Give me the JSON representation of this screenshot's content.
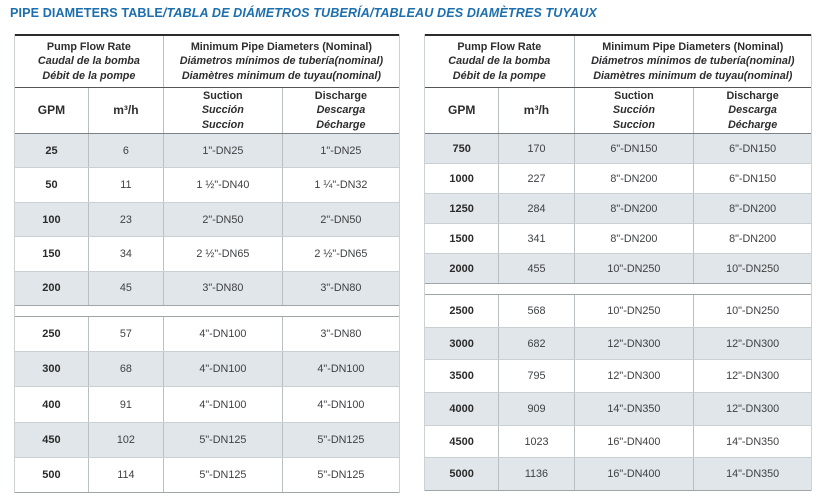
{
  "title": {
    "main": "PIPE DIAMETERS TABLE",
    "tail": "/TABLA DE DIÁMETROS TUBERÍA/TABLEAU DES DIAMÈTRES TUYAUX"
  },
  "colors": {
    "accent_blue": "#1c6fae",
    "row_shade": "#e0e6e9",
    "grid_line": "#b9c0c4",
    "dark_line": "#2b2b2b",
    "text": "#3f4144"
  },
  "tables": [
    {
      "name": "left",
      "header": {
        "flow": [
          "Pump Flow Rate",
          "Caudal de la bomba",
          "Débit de la pompe"
        ],
        "diam": [
          "Minimum Pipe Diameters (Nominal)",
          "Diámetros mínimos de tubería(nominal)",
          "Diamètres minimum de tuyau(nominal)"
        ],
        "gpm": "GPM",
        "m3h": "m³/h",
        "suction": [
          "Suction",
          "Succión",
          "Succion"
        ],
        "discharge": [
          "Discharge",
          "Descarga",
          "Décharge"
        ]
      },
      "blocks": [
        [
          [
            "25",
            "6",
            "1\"-DN25",
            "1\"-DN25"
          ],
          [
            "50",
            "11",
            "1 ½\"-DN40",
            "1 ¼\"-DN32"
          ],
          [
            "100",
            "23",
            "2\"-DN50",
            "2\"-DN50"
          ],
          [
            "150",
            "34",
            "2 ½\"-DN65",
            "2 ½\"-DN65"
          ],
          [
            "200",
            "45",
            "3\"-DN80",
            "3\"-DN80"
          ]
        ],
        [
          [
            "250",
            "57",
            "4\"-DN100",
            "3\"-DN80"
          ],
          [
            "300",
            "68",
            "4\"-DN100",
            "4\"-DN100"
          ],
          [
            "400",
            "91",
            "4\"-DN100",
            "4\"-DN100"
          ],
          [
            "450",
            "102",
            "5\"-DN125",
            "5\"-DN125"
          ],
          [
            "500",
            "114",
            "5\"-DN125",
            "5\"-DN125"
          ]
        ]
      ]
    },
    {
      "name": "right",
      "header": {
        "flow": [
          "Pump Flow Rate",
          "Caudal de la bomba",
          "Débit de la pompe"
        ],
        "diam": [
          "Minimum Pipe Diameters (Nominal)",
          "Diámetros mínimos de tubería(nominal)",
          "Diamètres minimum de tuyau(nominal)"
        ],
        "gpm": "GPM",
        "m3h": "m³/h",
        "suction": [
          "Suction",
          "Succión",
          "Succion"
        ],
        "discharge": [
          "Discharge",
          "Descarga",
          "Décharge"
        ]
      },
      "blocks": [
        [
          [
            "750",
            "170",
            "6\"-DN150",
            "6\"-DN150"
          ],
          [
            "1000",
            "227",
            "8\"-DN200",
            "6\"-DN150"
          ],
          [
            "1250",
            "284",
            "8\"-DN200",
            "8\"-DN200"
          ],
          [
            "1500",
            "341",
            "8\"-DN200",
            "8\"-DN200"
          ],
          [
            "2000",
            "455",
            "10\"-DN250",
            "10\"-DN250"
          ]
        ],
        [
          [
            "2500",
            "568",
            "10\"-DN250",
            "10\"-DN250"
          ],
          [
            "3000",
            "682",
            "12\"-DN300",
            "12\"-DN300"
          ],
          [
            "3500",
            "795",
            "12\"-DN300",
            "12\"-DN300"
          ],
          [
            "4000",
            "909",
            "14\"-DN350",
            "12\"-DN300"
          ],
          [
            "4500",
            "1023",
            "16\"-DN400",
            "14\"-DN350"
          ],
          [
            "5000",
            "1136",
            "16\"-DN400",
            "14\"-DN350"
          ]
        ]
      ]
    }
  ]
}
